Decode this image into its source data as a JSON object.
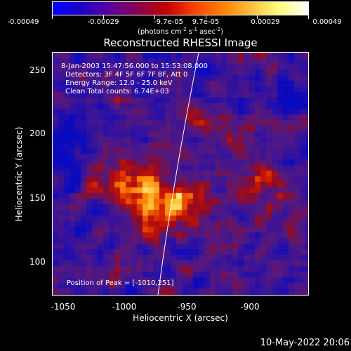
{
  "colorbar": {
    "tick_labels": [
      "-0.00049",
      "-0.00029",
      "-9.7e-05",
      "9.7e-05",
      "0.00029",
      "0.00049"
    ],
    "units_base": "(photons cm",
    "units_exp1": "-2",
    "units_mid1": " s",
    "units_exp2": "-1",
    "units_mid2": " asec",
    "units_exp3": "-2",
    "units_close": ")",
    "colors": [
      "#0000ff",
      "#1e00c8",
      "#5a00a0",
      "#8a0050",
      "#c00000",
      "#ff4000",
      "#ff8000",
      "#ffc040",
      "#ffff80",
      "#ffffff"
    ]
  },
  "title": "Reconstructed RHESSI Image",
  "info": {
    "time_range": "8-Jan-2003 15:47:56.000 to 15:53:08.000",
    "detectors": "Detectors: 3F 4F 5F 6F 7F 8F, Att 0",
    "energy_range": "Energy Range: 12.0 - 25.0 keV",
    "clean_counts": "Clean     Total counts: 6.74E+03",
    "peak_position": "Position of Peak = [-1010,251]"
  },
  "axes": {
    "x_label": "Heliocentric X (arcsec)",
    "y_label": "Heliocentric Y (arcsec)",
    "x_ticks": [
      "-1050",
      "-1000",
      "-950",
      "-900"
    ],
    "y_ticks": [
      "250",
      "200",
      "150",
      "100"
    ],
    "x_range": [
      -1058,
      -868
    ],
    "y_range": [
      72,
      264
    ]
  },
  "limb_color": "#ffffff",
  "timestamp": "10-May-2022 20:06"
}
